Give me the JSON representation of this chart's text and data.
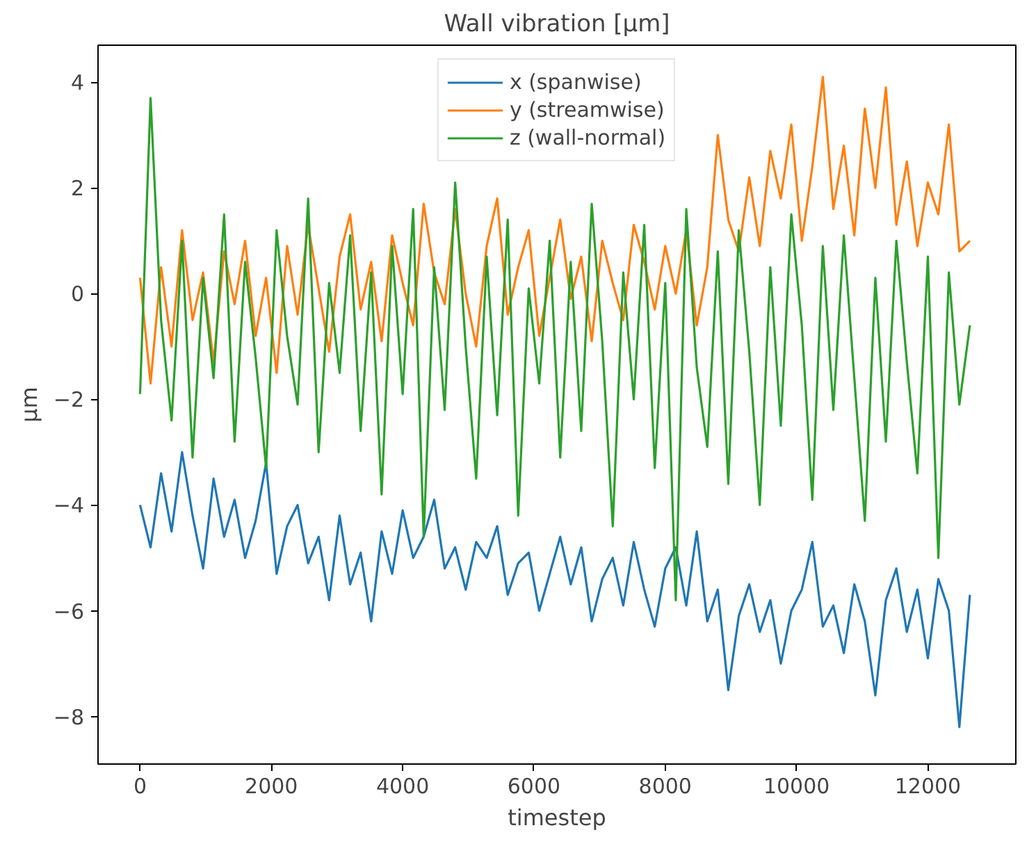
{
  "chart_data": {
    "type": "line",
    "title": "Wall vibration [μm]",
    "xlabel": "timestep",
    "ylabel": "μm",
    "x": [
      0,
      160,
      320,
      480,
      640,
      800,
      960,
      1120,
      1280,
      1440,
      1600,
      1760,
      1920,
      2080,
      2240,
      2400,
      2560,
      2720,
      2880,
      3040,
      3200,
      3360,
      3520,
      3680,
      3840,
      4000,
      4160,
      4320,
      4480,
      4640,
      4800,
      4960,
      5120,
      5280,
      5440,
      5600,
      5760,
      5920,
      6080,
      6240,
      6400,
      6560,
      6720,
      6880,
      7040,
      7200,
      7360,
      7520,
      7680,
      7840,
      8000,
      8160,
      8320,
      8480,
      8640,
      8800,
      8960,
      9120,
      9280,
      9440,
      9600,
      9760,
      9920,
      10080,
      10240,
      10400,
      10560,
      10720,
      10880,
      11040,
      11200,
      11360,
      11520,
      11680,
      11840,
      12000,
      12160,
      12320,
      12480,
      12640
    ],
    "series": [
      {
        "name": "x (spanwise)",
        "color": "#1f77b4",
        "values": [
          -4.0,
          -4.8,
          -3.4,
          -4.5,
          -3.0,
          -4.2,
          -5.2,
          -3.5,
          -4.6,
          -3.9,
          -5.0,
          -4.3,
          -3.2,
          -5.3,
          -4.4,
          -4.0,
          -5.1,
          -4.6,
          -5.8,
          -4.2,
          -5.5,
          -4.9,
          -6.2,
          -4.5,
          -5.3,
          -4.1,
          -5.0,
          -4.6,
          -3.9,
          -5.2,
          -4.8,
          -5.6,
          -4.7,
          -5.0,
          -4.4,
          -5.7,
          -5.1,
          -4.9,
          -6.0,
          -5.3,
          -4.6,
          -5.5,
          -4.8,
          -6.2,
          -5.4,
          -5.0,
          -5.9,
          -4.7,
          -5.6,
          -6.3,
          -5.2,
          -4.8,
          -5.9,
          -4.5,
          -6.2,
          -5.6,
          -7.5,
          -6.1,
          -5.5,
          -6.4,
          -5.8,
          -7.0,
          -6.0,
          -5.6,
          -4.7,
          -6.3,
          -5.9,
          -6.8,
          -5.5,
          -6.2,
          -7.6,
          -5.8,
          -5.2,
          -6.4,
          -5.6,
          -6.9,
          -5.4,
          -6.0,
          -8.2,
          -5.7
        ]
      },
      {
        "name": "y (streamwise)",
        "color": "#ff7f0e",
        "values": [
          0.3,
          -1.7,
          0.5,
          -1.0,
          1.2,
          -0.5,
          0.4,
          -1.3,
          0.8,
          -0.2,
          1.0,
          -0.8,
          0.3,
          -1.5,
          0.9,
          -0.4,
          1.3,
          0.1,
          -1.1,
          0.7,
          1.5,
          -0.3,
          0.6,
          -0.9,
          1.1,
          0.2,
          -0.6,
          1.7,
          0.4,
          -0.2,
          1.6,
          0.0,
          -1.0,
          0.9,
          1.8,
          -0.4,
          0.5,
          1.2,
          -0.8,
          0.3,
          1.4,
          -0.1,
          0.7,
          -0.9,
          1.0,
          0.2,
          -0.5,
          1.3,
          0.6,
          -0.3,
          0.9,
          0.0,
          1.2,
          -0.6,
          0.5,
          3.0,
          1.4,
          0.8,
          2.2,
          0.9,
          2.7,
          1.8,
          3.2,
          1.0,
          2.4,
          4.1,
          1.6,
          2.8,
          1.1,
          3.5,
          2.0,
          3.9,
          1.3,
          2.5,
          0.9,
          2.1,
          1.5,
          3.2,
          0.8,
          1.0
        ]
      },
      {
        "name": "z (wall-normal)",
        "color": "#2ca02c",
        "values": [
          -1.9,
          3.7,
          -0.5,
          -2.4,
          1.0,
          -3.1,
          0.3,
          -1.6,
          1.5,
          -2.8,
          0.6,
          -1.2,
          -3.3,
          1.2,
          -0.8,
          -2.1,
          1.8,
          -3.0,
          0.2,
          -1.5,
          1.1,
          -2.6,
          0.4,
          -3.8,
          0.9,
          -1.9,
          1.6,
          -4.6,
          0.5,
          -2.2,
          2.1,
          -1.0,
          -3.5,
          0.7,
          -2.3,
          1.4,
          -4.2,
          0.1,
          -1.7,
          1.0,
          -3.1,
          0.6,
          -2.6,
          1.7,
          -0.9,
          -4.4,
          0.4,
          -2.0,
          1.3,
          -3.3,
          0.2,
          -5.8,
          1.6,
          -1.4,
          -2.9,
          0.8,
          -3.6,
          1.2,
          -1.1,
          -4.0,
          0.5,
          -2.5,
          1.5,
          -0.6,
          -3.9,
          0.9,
          -2.2,
          1.1,
          -1.6,
          -4.3,
          0.3,
          -2.8,
          1.0,
          -1.3,
          -3.4,
          0.7,
          -5.0,
          0.4,
          -2.1,
          -0.6
        ]
      }
    ],
    "xlim": [
      -640,
      13340
    ],
    "ylim": [
      -8.9,
      4.7
    ],
    "xticks": [
      0,
      2000,
      4000,
      6000,
      8000,
      10000,
      12000
    ],
    "yticks": [
      {
        "value": -8,
        "label": "−8"
      },
      {
        "value": -6,
        "label": "−6"
      },
      {
        "value": -4,
        "label": "−4"
      },
      {
        "value": -2,
        "label": "−2"
      },
      0,
      2,
      4
    ],
    "grid": false,
    "legend": "top",
    "line_style": "solid"
  }
}
